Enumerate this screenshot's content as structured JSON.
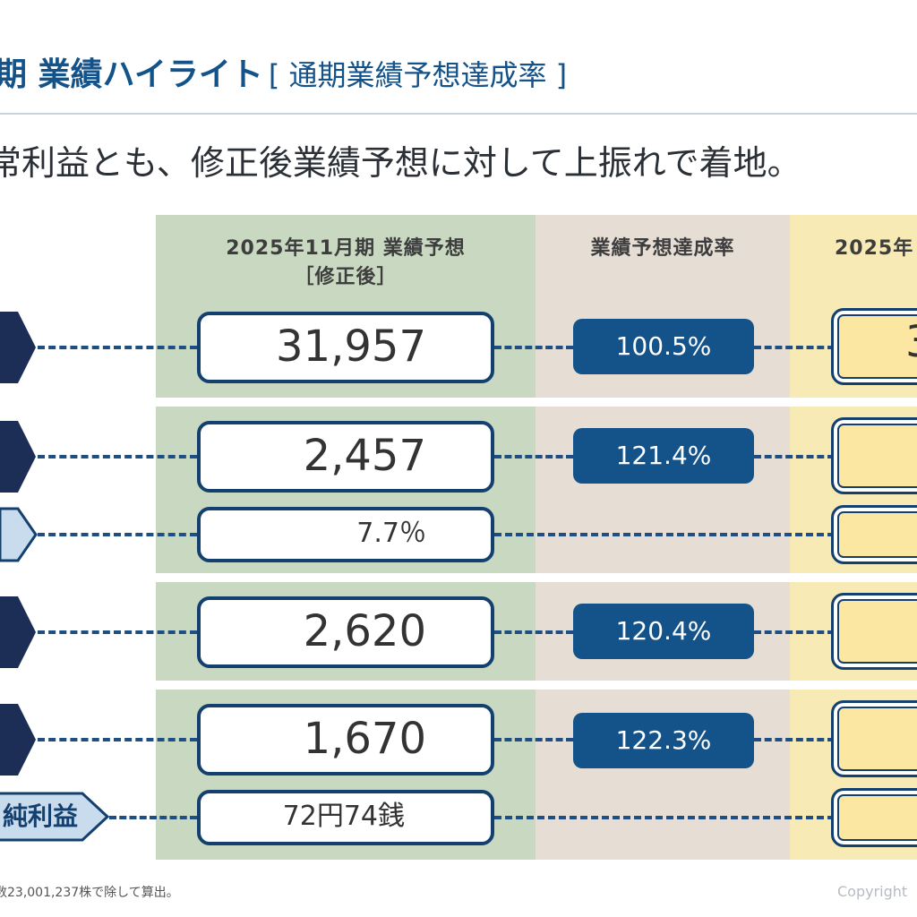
{
  "header": {
    "title": "期 業績ハイライト",
    "subtitle": "[ 通期業績予想達成率 ]",
    "lead": "常利益とも、修正後業績予想に対して上振れで着地。"
  },
  "columns": {
    "forecast_line1": "2025年11月期 業績予想",
    "forecast_line2": "［修正後］",
    "rate": "業績予想達成率",
    "actual_partial": "2025年"
  },
  "rows": [
    {
      "forecast": "31,957",
      "rate": "100.5%",
      "actual_partial": "3"
    },
    {
      "forecast": "2,457",
      "rate": "121.4%",
      "actual_partial": ""
    },
    {
      "forecast": "7.7％",
      "rate": "",
      "actual_partial": ""
    },
    {
      "forecast": "2,620",
      "rate": "120.4%",
      "actual_partial": ""
    },
    {
      "forecast": "1,670",
      "rate": "122.3%",
      "actual_partial": ""
    },
    {
      "forecast": "72円74銭",
      "rate": "",
      "actual_partial": ""
    }
  ],
  "eps_label": "純利益",
  "footnote": "数23,001,237株で除して算出。",
  "copyright": "Copyright",
  "colors": {
    "navy": "#14406f",
    "accent": "#14528a",
    "green_bg": "#c9d8c1",
    "beige_bg": "#e6ddd5",
    "yellow_bg": "#f7eab4"
  }
}
